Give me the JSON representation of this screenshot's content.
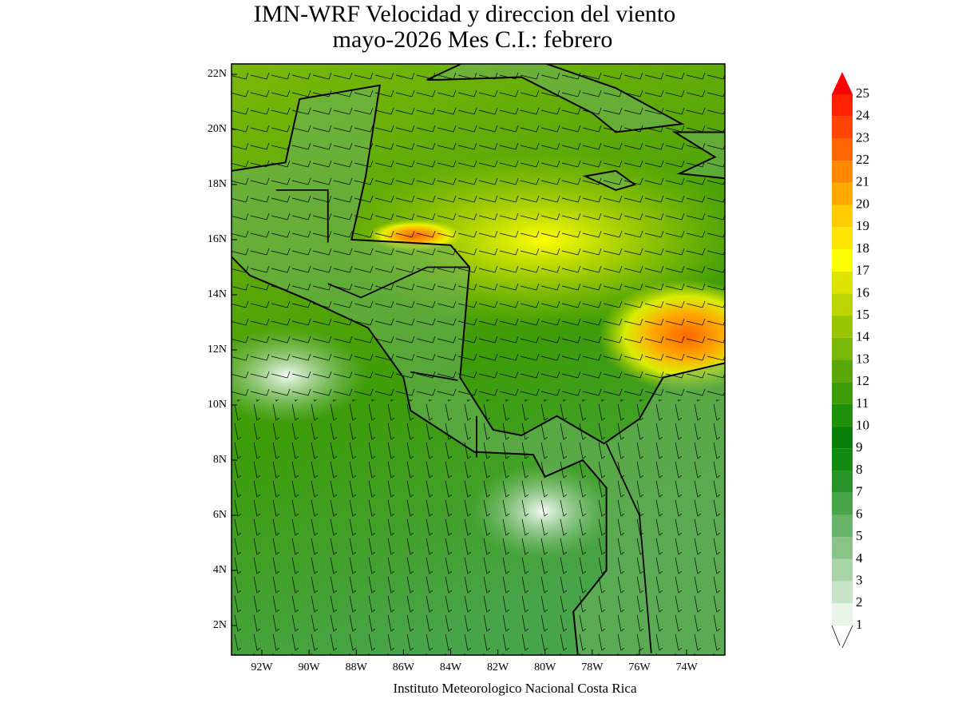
{
  "header": {
    "title": [
      "IMN-WRF Velocidad y direccion del viento",
      "mayo-2026 Mes C.I.: febrero"
    ]
  },
  "map": {
    "lat_labels": [
      "22N",
      "20N",
      "18N",
      "16N",
      "14N",
      "12N",
      "10N",
      "8N",
      "6N",
      "4N",
      "2N"
    ],
    "lon_labels": [
      "92W",
      "90W",
      "88W",
      "86W",
      "84W",
      "82W",
      "80W",
      "78W",
      "76W",
      "74W"
    ]
  },
  "colorbar": {
    "levels": [
      1,
      2,
      3,
      4,
      5,
      6,
      7,
      8,
      9,
      10,
      11,
      12,
      13,
      14,
      15,
      16,
      17,
      18,
      19,
      20,
      21,
      22,
      23,
      24,
      25
    ],
    "colors": [
      "#e8f4e8",
      "#c8e4c8",
      "#a8d4a8",
      "#88c488",
      "#68b468",
      "#48a448",
      "#289428",
      "#108a10",
      "#0a7f0a",
      "#1e900a",
      "#3c9c08",
      "#5aa808",
      "#7ab808",
      "#98c400",
      "#bcd400",
      "#dce400",
      "#ffff00",
      "#ffe600",
      "#ffcc00",
      "#ffaa00",
      "#ff8800",
      "#ff6600",
      "#ff4400",
      "#ff2200"
    ],
    "over_color": "#ff0000",
    "under_color": "#ffffff"
  },
  "footer": "Instituto Meteorologico Nacional Costa Rica"
}
